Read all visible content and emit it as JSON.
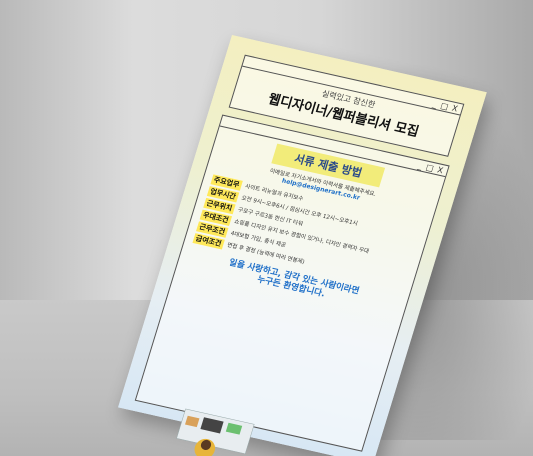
{
  "poster": {
    "subtitle": "실력있고 참신한",
    "title": "웹디자이너/웹퍼블리셔 모집",
    "window_minimize": "_",
    "window_maximize": "□",
    "window_close": "X",
    "section_title": "서류 제출 방법",
    "intro_line1": "이메일로 자기소개서와 이력서를 제출해주세요.",
    "email": "help@designerart.co.kr",
    "items": [
      {
        "tag": "주요업무",
        "text": "사이트 리뉴얼과 유지보수"
      },
      {
        "tag": "업무시간",
        "text": "오전 9시~오후6시 / 점심시간 오후 12시~오후1시"
      },
      {
        "tag": "근무위치",
        "text": "구로구 구로3동 한신 IT 타워"
      },
      {
        "tag": "우대조건",
        "text": "쇼핑몰 디자인 유지 보수 경험이 있거나, 디자인 경력자 우대"
      },
      {
        "tag": "근무조건",
        "text": "4대보험 가입, 중식 제공"
      },
      {
        "tag": "급여조건",
        "text": "면접 후 결정 (능력에 따라 연봉제)"
      }
    ],
    "closing_line1": "일을 사랑하고, 감각 있는 사람이라면",
    "closing_line2": "누구든 환영합니다."
  },
  "colors": {
    "banner": "#f2ec7a",
    "tag": "#ffe95a",
    "accent_blue": "#1e6fc8",
    "poster_top": "#f4efc0",
    "poster_bottom": "#d7e7f4"
  }
}
